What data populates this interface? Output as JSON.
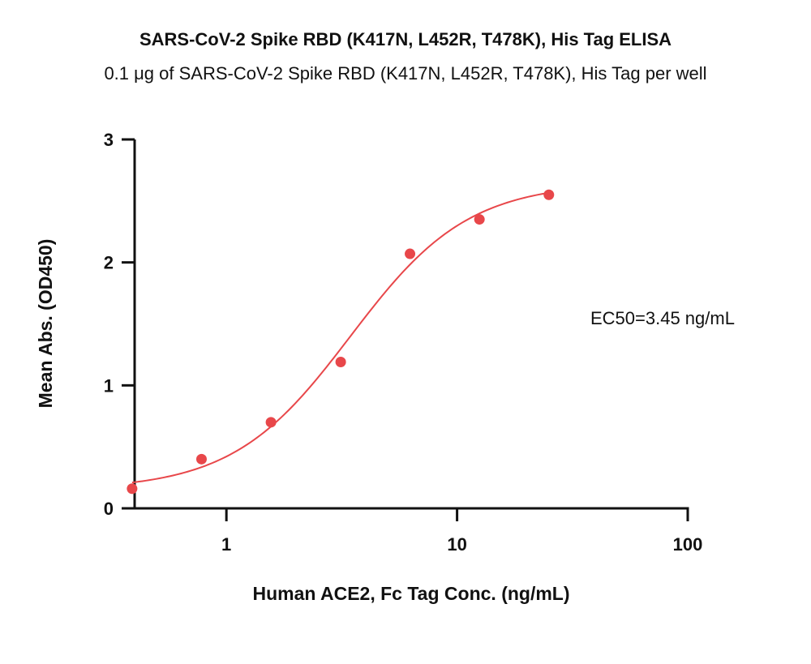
{
  "chart_data": {
    "type": "scatter",
    "title": "SARS-CoV-2 Spike RBD (K417N, L452R, T478K), His Tag ELISA",
    "subtitle": "0.1 μg of SARS-CoV-2 Spike RBD (K417N, L452R, T478K), His Tag per well",
    "xlabel": "Human ACE2, Fc Tag Conc. (ng/mL)",
    "ylabel": "Mean Abs. (OD450)",
    "x_scale": "log",
    "xlim": [
      0.4,
      100
    ],
    "ylim": [
      0,
      3
    ],
    "x_ticks": [
      {
        "value": 1,
        "label": "1"
      },
      {
        "value": 10,
        "label": "10"
      },
      {
        "value": 100,
        "label": "100"
      }
    ],
    "y_ticks": [
      {
        "value": 0,
        "label": "0"
      },
      {
        "value": 1,
        "label": "1"
      },
      {
        "value": 2,
        "label": "2"
      },
      {
        "value": 3,
        "label": "3"
      }
    ],
    "series": [
      {
        "color": "#e8474a",
        "x": [
          0.39,
          0.78,
          1.56,
          3.13,
          6.25,
          12.5,
          25
        ],
        "y": [
          0.16,
          0.4,
          0.7,
          1.19,
          2.07,
          2.35,
          2.55
        ]
      }
    ],
    "fit_curve": {
      "model": "4PL",
      "color": "#e8474a",
      "bottom": 0.15,
      "top": 2.65,
      "ec50": 3.45,
      "hill": 1.7
    },
    "annotation": "EC50=3.45 ng/mL",
    "grid": false,
    "legend": "none"
  }
}
